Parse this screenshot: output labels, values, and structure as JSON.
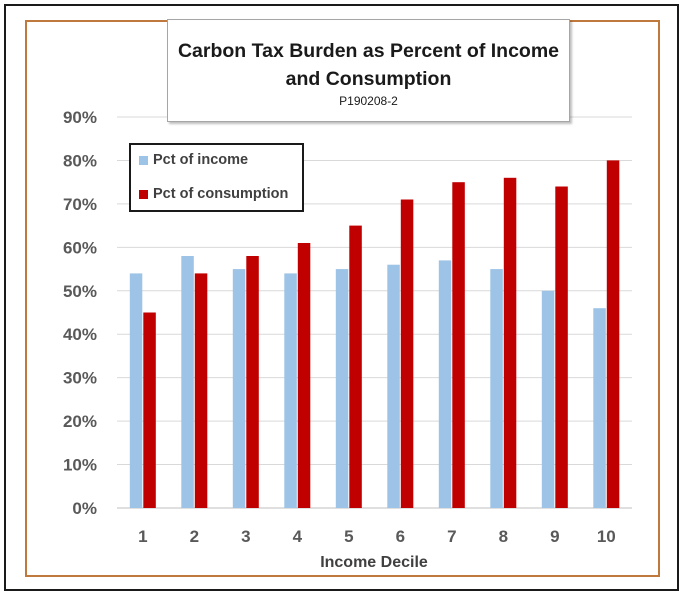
{
  "chart_data": {
    "type": "bar",
    "title_line1": "Carbon Tax Burden as Percent of Income",
    "title_line2": "and Consumption",
    "subtitle": "P190208-2",
    "xlabel": "Income Decile",
    "ylabel": "",
    "categories": [
      "1",
      "2",
      "3",
      "4",
      "5",
      "6",
      "7",
      "8",
      "9",
      "10"
    ],
    "ylim": [
      0,
      90
    ],
    "yticks": [
      "0%",
      "10%",
      "20%",
      "30%",
      "40%",
      "50%",
      "60%",
      "70%",
      "80%",
      "90%"
    ],
    "ytick_values": [
      0,
      10,
      20,
      30,
      40,
      50,
      60,
      70,
      80,
      90
    ],
    "grid": true,
    "legend_position": "top-left",
    "series": [
      {
        "name": "Pct of income",
        "color": "#9dc3e6",
        "values": [
          54,
          58,
          55,
          54,
          55,
          56,
          57,
          55,
          50,
          46
        ]
      },
      {
        "name": "Pct of consumption",
        "color": "#c00000",
        "values": [
          45,
          54,
          58,
          61,
          65,
          71,
          75,
          76,
          74,
          80
        ]
      }
    ]
  }
}
